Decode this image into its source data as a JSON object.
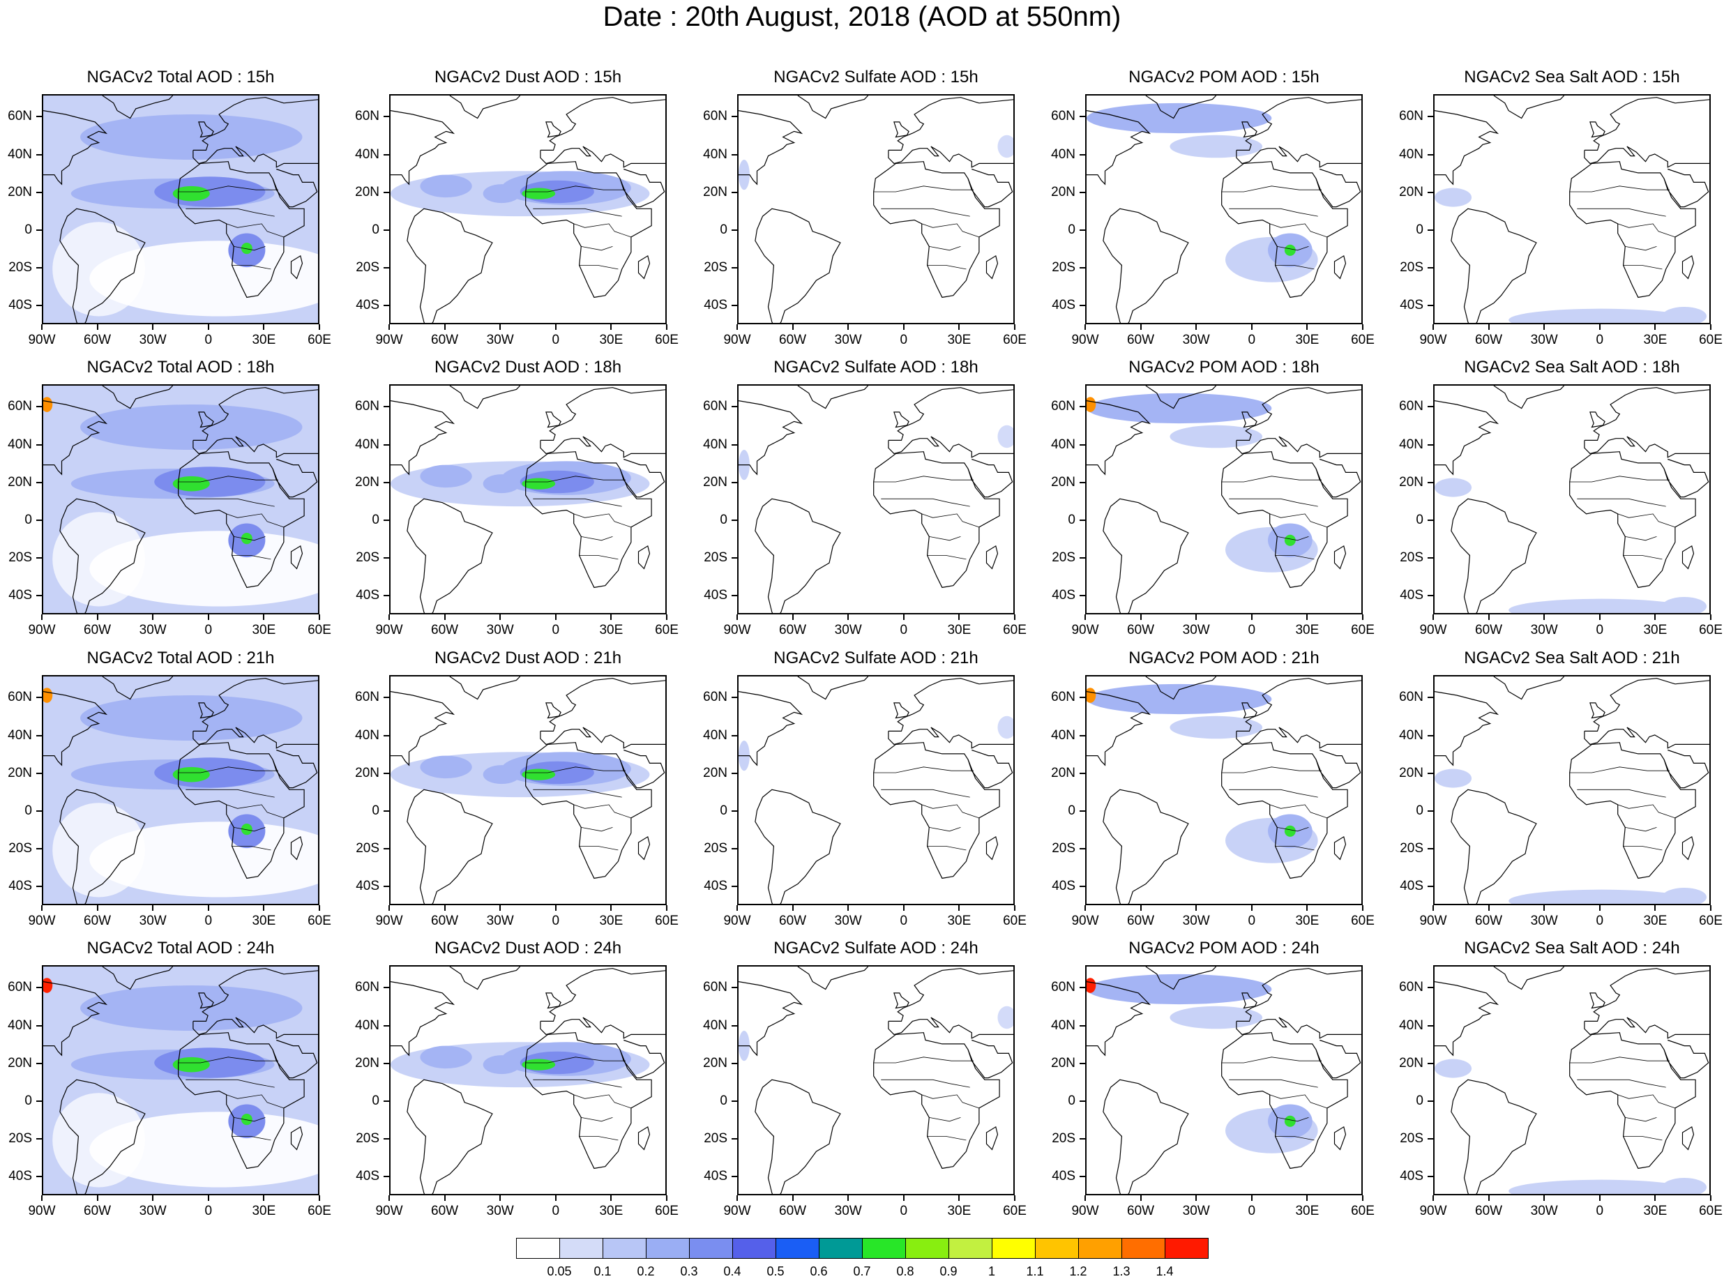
{
  "title": "Date : 20th August, 2018 (AOD at 550nm)",
  "rows": [
    {
      "panels": [
        "NGACv2 Total AOD : 15h",
        "NGACv2 Dust AOD : 15h",
        "NGACv2 Sulfate AOD : 15h",
        "NGACv2 POM AOD : 15h",
        "NGACv2 Sea Salt AOD : 15h"
      ]
    },
    {
      "panels": [
        "NGACv2 Total AOD : 18h",
        "NGACv2 Dust AOD : 18h",
        "NGACv2 Sulfate AOD : 18h",
        "NGACv2 POM AOD : 18h",
        "NGACv2 Sea Salt AOD : 18h"
      ]
    },
    {
      "panels": [
        "NGACv2 Total AOD : 21h",
        "NGACv2 Dust AOD : 21h",
        "NGACv2 Sulfate AOD : 21h",
        "NGACv2 POM AOD : 21h",
        "NGACv2 Sea Salt AOD : 21h"
      ]
    },
    {
      "panels": [
        "NGACv2 Total AOD : 24h",
        "NGACv2 Dust AOD : 24h",
        "NGACv2 Sulfate AOD : 24h",
        "NGACv2 POM AOD : 24h",
        "NGACv2 Sea Salt  AOD : 24h"
      ]
    }
  ],
  "lat_labels": [
    "60N",
    "40N",
    "20N",
    "0",
    "20S",
    "40S"
  ],
  "lon_labels": [
    "90W",
    "60W",
    "30W",
    "0",
    "30E",
    "60E"
  ],
  "colorbar": {
    "labels": [
      "0.05",
      "0.1",
      "0.2",
      "0.3",
      "0.4",
      "0.5",
      "0.6",
      "0.7",
      "0.8",
      "0.9",
      "1",
      "1.1",
      "1.2",
      "1.3",
      "1.4"
    ],
    "colors": [
      "#ffffff",
      "#d4dcf8",
      "#b8c6f6",
      "#9aaef4",
      "#7a8ef0",
      "#5560ea",
      "#1a5ef5",
      "#009a96",
      "#28e628",
      "#88ee10",
      "#c2f040",
      "#ffff00",
      "#ffc400",
      "#ffa000",
      "#ff6e00",
      "#ff1a00"
    ]
  },
  "panel_colors": {
    "light": "#c8d2f7",
    "mid": "#a4b4f4",
    "strong": "#7c8cee",
    "deep": "#5a64e6",
    "green": "#30e030",
    "yellow": "#e8f020",
    "red": "#ff2000",
    "orange": "#ff9000"
  }
}
